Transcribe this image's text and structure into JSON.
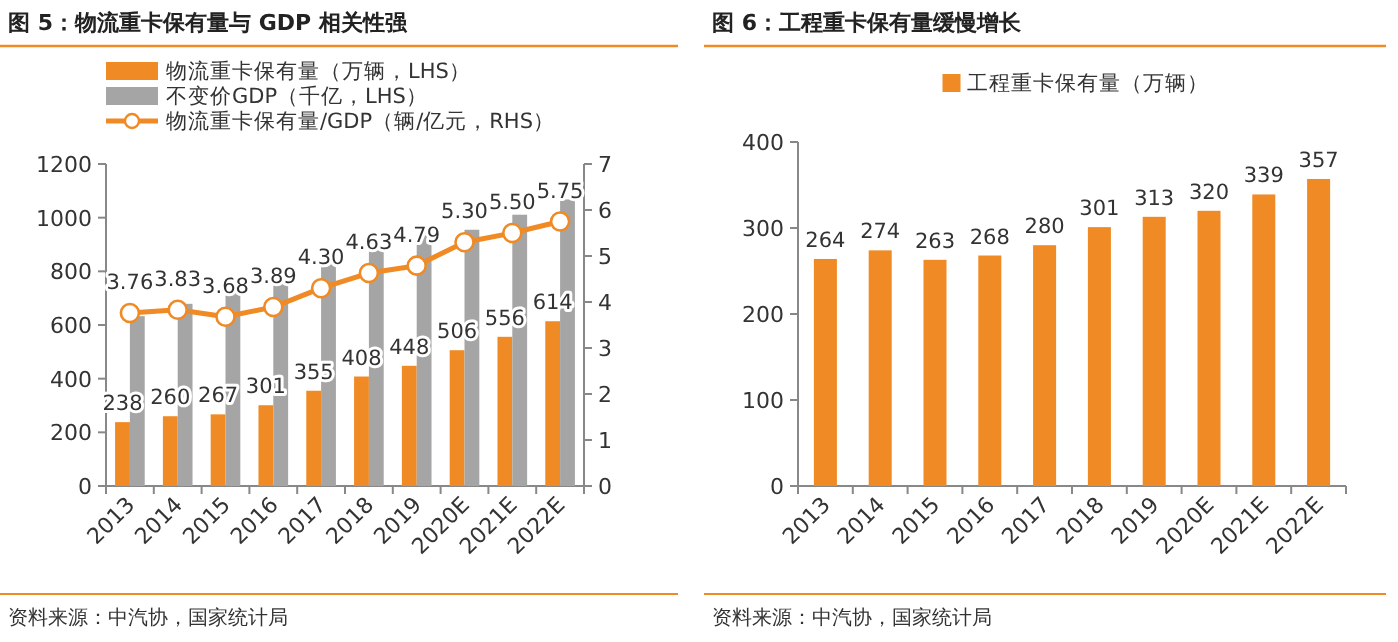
{
  "chart_data": [
    {
      "type": "bar",
      "title": "图 5：物流重卡保有量与 GDP 相关性强",
      "categories": [
        "2013",
        "2014",
        "2015",
        "2016",
        "2017",
        "2018",
        "2019",
        "2020E",
        "2021E",
        "2022E"
      ],
      "series": [
        {
          "name": "物流重卡保有量（万辆，LHS）",
          "color": "#f08a24",
          "values": [
            238,
            260,
            267,
            301,
            355,
            408,
            448,
            506,
            556,
            614
          ],
          "value_labels": [
            "238",
            "260",
            "267",
            "301",
            "355",
            "408",
            "448",
            "506",
            "556",
            "614"
          ]
        },
        {
          "name": "不变价GDP（千亿，LHS）",
          "color": "#a5a5a5",
          "values": [
            633,
            679,
            726,
            774,
            826,
            881,
            935,
            955,
            1011,
            1068
          ]
        },
        {
          "name": "物流重卡保有量/GDP（辆/亿元，RHS）",
          "type": "line",
          "axis": "y2",
          "marker": "circle",
          "color": "#f08a24",
          "values": [
            3.76,
            3.83,
            3.68,
            3.89,
            4.3,
            4.63,
            4.79,
            5.3,
            5.5,
            5.75
          ],
          "value_labels": [
            "3.76",
            "3.83",
            "3.68",
            "3.89",
            "4.30",
            "4.63",
            "4.79",
            "5.30",
            "5.50",
            "5.75"
          ]
        }
      ],
      "ylim": [
        0,
        1200
      ],
      "yticks": [
        0,
        200,
        400,
        600,
        800,
        1000,
        1200
      ],
      "y2lim": [
        0,
        7
      ],
      "y2ticks": [
        0,
        1,
        2,
        3,
        4,
        5,
        6,
        7
      ],
      "legend": "top left",
      "annotations": [
        "资料来源：中汽协，国家统计局"
      ]
    },
    {
      "type": "bar",
      "title": "图 6：工程重卡保有量缓慢增长",
      "categories": [
        "2013",
        "2014",
        "2015",
        "2016",
        "2017",
        "2018",
        "2019",
        "2020E",
        "2021E",
        "2022E"
      ],
      "series": [
        {
          "name": "工程重卡保有量（万辆）",
          "color": "#f08a24",
          "values": [
            264,
            274,
            263,
            268,
            280,
            301,
            313,
            320,
            339,
            357
          ]
        }
      ],
      "data_labels": true,
      "ylim": [
        0,
        400
      ],
      "yticks": [
        0,
        100,
        200,
        300,
        400
      ],
      "legend": "top",
      "annotations": [
        "资料来源：中汽协，国家统计局"
      ]
    }
  ]
}
